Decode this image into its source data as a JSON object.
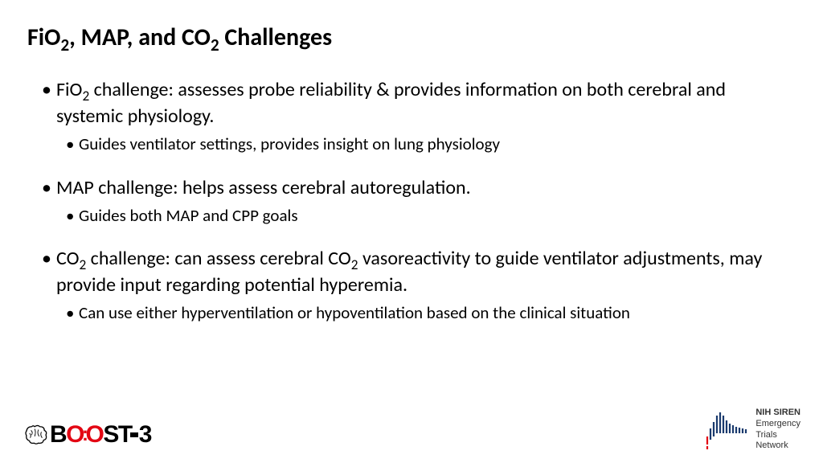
{
  "title": {
    "pre": "FiO",
    "sub1": "2",
    "mid": ", MAP, and CO",
    "sub2": "2",
    "post": " Challenges"
  },
  "bullets": [
    {
      "parts": [
        "FiO",
        "2",
        " challenge: assesses probe reliability & provides information on both cerebral and systemic physiology."
      ],
      "pattern": "tst",
      "sub": [
        "Guides ventilator settings, provides insight on lung physiology"
      ]
    },
    {
      "parts": [
        "MAP challenge: helps assess cerebral autoregulation."
      ],
      "pattern": "t",
      "sub": [
        "Guides both MAP and CPP goals"
      ]
    },
    {
      "parts": [
        "CO",
        "2",
        " challenge: can assess cerebral CO",
        "2",
        " vasoreactivity to guide ventilator adjustments, may provide input regarding potential hyperemia."
      ],
      "pattern": "tstst",
      "sub": [
        "Can use either hyperventilation or hypoventilation based on the clinical situation"
      ]
    }
  ],
  "logos": {
    "boost": {
      "text_parts": [
        "B",
        "O",
        ":",
        "O",
        "S",
        "T",
        "-",
        "3"
      ],
      "accent": "#e30613",
      "black": "#000000"
    },
    "siren": {
      "line1": "NIH SIREN",
      "line2": "Emergency",
      "line3": "Trials",
      "line4": "Network",
      "bar_color_red": "#e30613",
      "bar_color_blue": "#1a3a6e"
    }
  },
  "style": {
    "title_fontsize": 30,
    "bullet_fontsize": 24,
    "sub_fontsize": 21,
    "bg": "#ffffff",
    "fg": "#000000"
  }
}
